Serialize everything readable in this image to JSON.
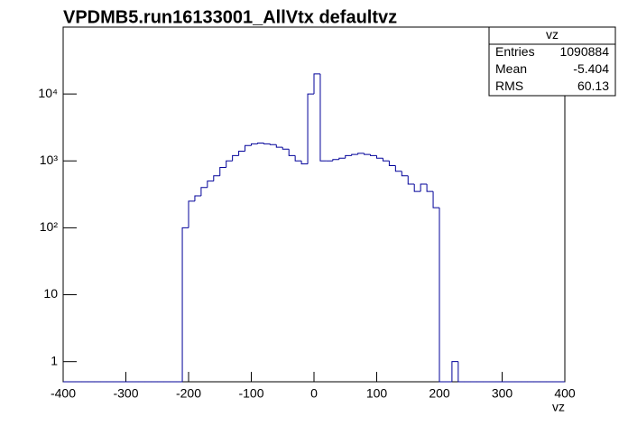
{
  "chart_data": {
    "type": "histogram",
    "title": "VPDMB5.run16133001_AllVtx defaultvz",
    "xlabel": "vz",
    "bins": [
      -400,
      -390,
      -380,
      -370,
      -360,
      -350,
      -340,
      -330,
      -320,
      -310,
      -300,
      -290,
      -280,
      -270,
      -260,
      -250,
      -240,
      -230,
      -220,
      -210,
      -200,
      -190,
      -180,
      -170,
      -160,
      -150,
      -140,
      -130,
      -120,
      -110,
      -100,
      -90,
      -80,
      -70,
      -60,
      -50,
      -40,
      -30,
      -20,
      -10,
      0,
      10,
      20,
      30,
      40,
      50,
      60,
      70,
      80,
      90,
      100,
      110,
      120,
      130,
      140,
      150,
      160,
      170,
      180,
      190,
      200,
      210,
      220,
      230,
      240,
      250,
      260,
      270,
      280,
      290,
      300,
      310,
      320,
      330,
      340,
      350,
      360,
      370,
      380,
      390,
      400
    ],
    "counts": [
      0,
      0,
      0,
      0,
      0,
      0,
      0,
      0,
      0,
      0,
      0,
      0,
      0,
      0,
      0,
      0,
      0,
      0,
      0,
      100,
      250,
      300,
      400,
      500,
      600,
      800,
      1000,
      1200,
      1400,
      1700,
      1800,
      1850,
      1800,
      1750,
      1600,
      1500,
      1200,
      1000,
      900,
      10000,
      20000,
      1000,
      1000,
      1050,
      1100,
      1200,
      1250,
      1300,
      1250,
      1200,
      1100,
      1000,
      850,
      700,
      600,
      450,
      350,
      450,
      350,
      200,
      0,
      0,
      1,
      0,
      0,
      0,
      0,
      0,
      0,
      0,
      0,
      0,
      0,
      0,
      0,
      0,
      0,
      0,
      0,
      0
    ],
    "color": "#000099",
    "log_y": true,
    "xlim": [
      -400,
      400
    ],
    "xticks": [
      -400,
      -300,
      -200,
      -100,
      0,
      100,
      200,
      300,
      400
    ],
    "ylim": [
      0.5,
      100000
    ],
    "yticks": [
      1,
      10,
      {
        "value": 100,
        "label": "10²"
      },
      {
        "value": 1000,
        "label": "10³"
      },
      {
        "value": 10000,
        "label": "10⁴"
      }
    ],
    "stats": {
      "title": "vz",
      "rows": [
        {
          "label": "Entries",
          "value": 1090884
        },
        {
          "label": "Mean",
          "value": -5.404
        },
        {
          "label": "RMS",
          "value": 60.13
        }
      ]
    }
  }
}
